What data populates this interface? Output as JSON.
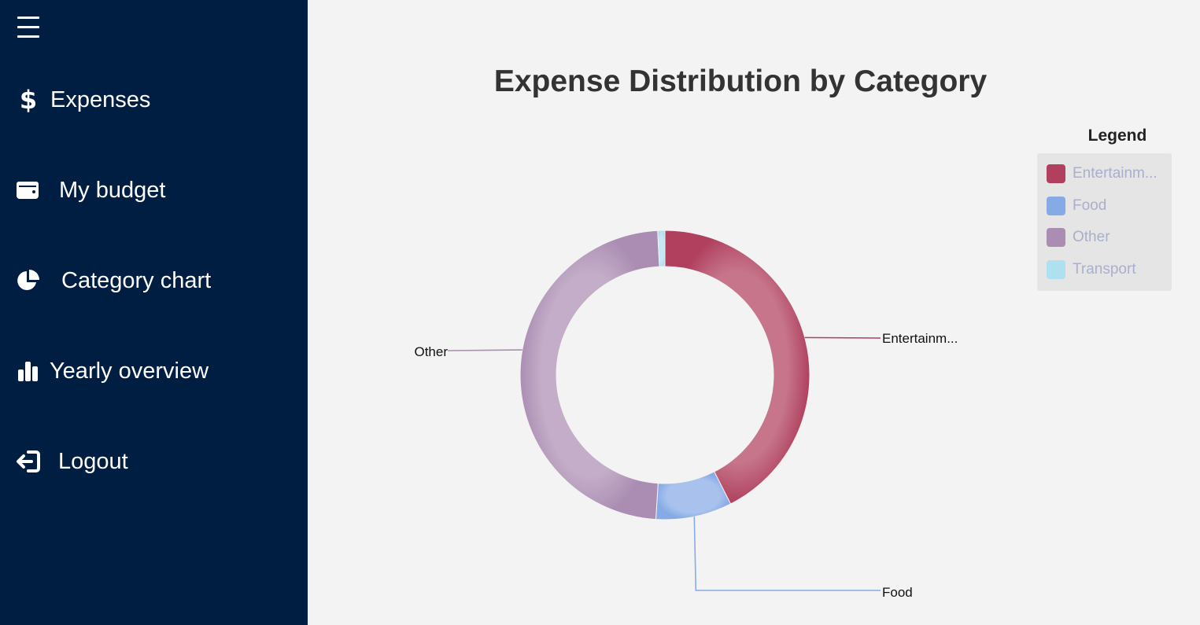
{
  "sidebar": {
    "menu_icon": "hamburger-icon",
    "items": [
      {
        "label": "Expenses",
        "icon": "dollar-icon"
      },
      {
        "label": "My budget",
        "icon": "wallet-icon"
      },
      {
        "label": "Category chart",
        "icon": "pie-chart-icon"
      },
      {
        "label": "Yearly overview",
        "icon": "bar-chart-icon"
      },
      {
        "label": "Logout",
        "icon": "logout-icon"
      }
    ]
  },
  "colors": {
    "sidebar_bg": "#001e42",
    "page_bg": "#f3f3f3",
    "entertainment": "#b0405e",
    "food": "#86aae6",
    "other": "#ab8db3",
    "transport": "#aee0f0"
  },
  "chart_data": {
    "type": "pie",
    "title": "Expense Distribution by Category",
    "legend_title": "Legend",
    "legend_position": "top-right",
    "donut": true,
    "series": [
      {
        "name": "Entertainm...",
        "value": 42.5,
        "color": "#b0405e"
      },
      {
        "name": "Food",
        "value": 8.5,
        "color": "#86aae6"
      },
      {
        "name": "Other",
        "value": 48.2,
        "color": "#ab8db3"
      },
      {
        "name": "Transport",
        "value": 0.8,
        "color": "#aee0f0"
      }
    ],
    "slice_labels": [
      "Entertainm...",
      "Food",
      "Other"
    ]
  }
}
